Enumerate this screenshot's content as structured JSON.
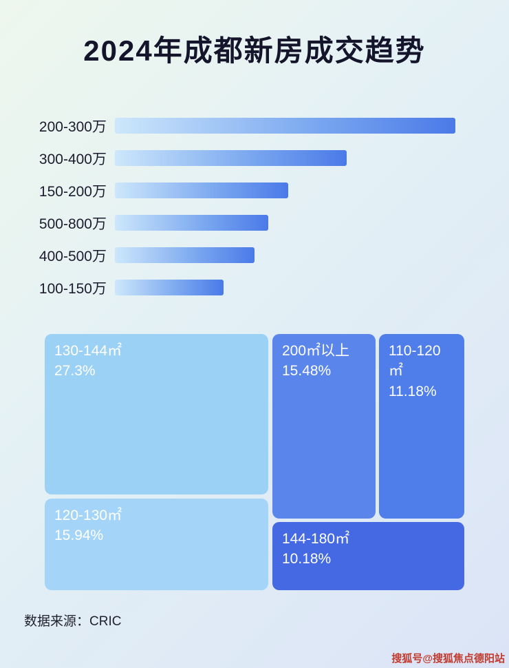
{
  "title": "2024年成都新房成交趋势",
  "chart_data": [
    {
      "type": "bar",
      "orientation": "horizontal",
      "categories": [
        "200-300万",
        "300-400万",
        "150-200万",
        "500-800万",
        "400-500万",
        "100-150万"
      ],
      "values": [
        100,
        68,
        51,
        45,
        41,
        32
      ],
      "value_note": "relative bar length as % of longest bar; no numeric axis shown in image",
      "bar_gradient": [
        "#cde7fb",
        "#4a7ae8"
      ]
    },
    {
      "type": "treemap",
      "items": [
        {
          "label": "130-144㎡",
          "value": 27.3,
          "display": "27.3%",
          "color": "#9cd1f6"
        },
        {
          "label": "120-130㎡",
          "value": 15.94,
          "display": "15.94%",
          "color": "#a4d5f8"
        },
        {
          "label": "200㎡以上",
          "value": 15.48,
          "display": "15.48%",
          "color": "#5a86ec"
        },
        {
          "label": "110-120㎡",
          "value": 11.18,
          "display": "11.18%",
          "color": "#4f7de9"
        },
        {
          "label": "144-180㎡",
          "value": 10.18,
          "display": "10.18%",
          "color": "#4569e2"
        }
      ]
    }
  ],
  "footer": {
    "source_label": "数据来源：CRIC"
  },
  "watermark": "搜狐号@搜狐焦点德阳站"
}
